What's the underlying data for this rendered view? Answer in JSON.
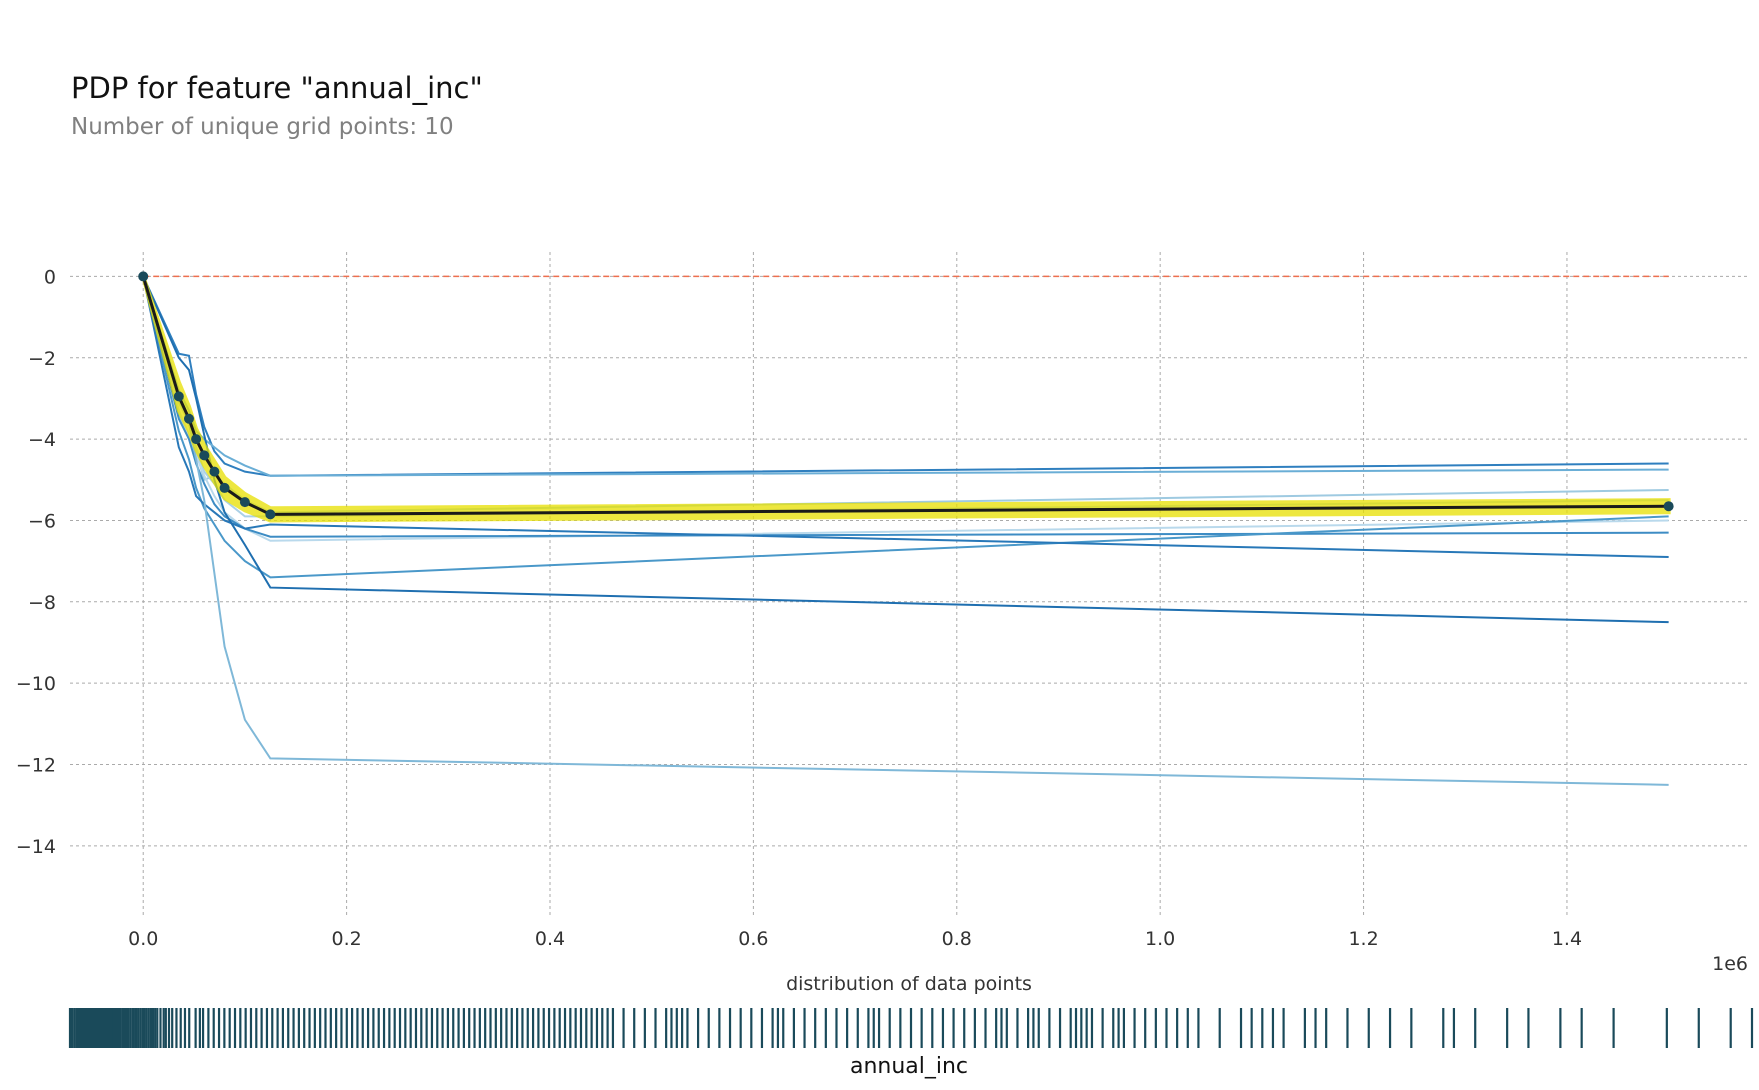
{
  "chart_data": {
    "type": "line",
    "title": "PDP for feature \"annual_inc\"",
    "subtitle": "Number of unique grid points: 10",
    "xlabel": "annual_inc",
    "dist_label": "distribution of data points",
    "x_offset_label": "1e6",
    "xlim": [
      -0.072,
      1.58
    ],
    "ylim": [
      -15.7,
      0.6
    ],
    "grid": true,
    "x_ticks": [
      0.0,
      0.2,
      0.4,
      0.6,
      0.8,
      1.0,
      1.2,
      1.4
    ],
    "x_tick_labels": [
      "0.0",
      "0.2",
      "0.4",
      "0.6",
      "0.8",
      "1.0",
      "1.2",
      "1.4"
    ],
    "y_ticks": [
      0,
      -2,
      -4,
      -6,
      -8,
      -10,
      -12,
      -14
    ],
    "y_tick_labels": [
      "0",
      "−2",
      "−4",
      "−6",
      "−8",
      "−10",
      "−12",
      "−14"
    ],
    "x": [
      0.0,
      0.035,
      0.045,
      0.052,
      0.06,
      0.07,
      0.08,
      0.1,
      0.125,
      1.5
    ],
    "pdp": {
      "values": [
        0,
        -2.95,
        -3.5,
        -4.0,
        -4.4,
        -4.8,
        -5.2,
        -5.55,
        -5.85,
        -5.65
      ],
      "band_upper": [
        0,
        -2.6,
        -3.2,
        -3.75,
        -4.15,
        -4.55,
        -4.95,
        -5.35,
        -5.7,
        -5.5
      ],
      "band_lower": [
        0,
        -3.3,
        -3.8,
        -4.25,
        -4.65,
        -5.05,
        -5.45,
        -5.75,
        -6.0,
        -5.8
      ],
      "line_color": "#1a1a1a",
      "marker_color": "#1a4a5a",
      "band_color": "#e8e000"
    },
    "zero_line_color": "#ee6f4e",
    "ice_lines": [
      {
        "color": "#2f7fbf",
        "values": [
          0,
          -1.9,
          -1.95,
          -2.9,
          -3.7,
          -4.3,
          -4.6,
          -4.8,
          -4.9,
          -4.6
        ]
      },
      {
        "color": "#6aaed6",
        "values": [
          0,
          -2.8,
          -3.3,
          -3.8,
          -4.0,
          -4.2,
          -4.4,
          -4.65,
          -4.9,
          -4.75
        ]
      },
      {
        "color": "#9ecae1",
        "values": [
          0,
          -3.4,
          -4.0,
          -4.3,
          -5.0,
          -4.9,
          -5.1,
          -5.5,
          -5.8,
          -5.25
        ]
      },
      {
        "color": "#abd0e6",
        "values": [
          0,
          -3.1,
          -3.6,
          -4.2,
          -4.8,
          -5.1,
          -5.5,
          -5.9,
          -5.9,
          -5.5
        ]
      },
      {
        "color": "#b9d9ec",
        "values": [
          0,
          -3.3,
          -3.9,
          -4.4,
          -4.9,
          -5.4,
          -5.8,
          -6.2,
          -6.5,
          -6.0
        ]
      },
      {
        "color": "#3d8cc4",
        "values": [
          0,
          -3.5,
          -4.0,
          -4.6,
          -5.1,
          -5.6,
          -5.9,
          -6.2,
          -6.4,
          -6.3
        ]
      },
      {
        "color": "#4a98c9",
        "values": [
          0,
          -3.8,
          -4.5,
          -5.2,
          -5.7,
          -6.1,
          -6.5,
          -7.0,
          -7.4,
          -5.9
        ]
      },
      {
        "color": "#2878b8",
        "values": [
          0,
          -4.2,
          -4.8,
          -5.4,
          -5.6,
          -5.8,
          -6.0,
          -6.2,
          -6.1,
          -6.9
        ]
      },
      {
        "color": "#1f6fb0",
        "values": [
          0,
          -2.0,
          -2.3,
          -3.0,
          -3.9,
          -5.0,
          -5.8,
          -6.6,
          -7.65,
          -8.5
        ]
      },
      {
        "color": "#7fb8d8",
        "values": [
          0,
          -3.0,
          -3.6,
          -4.5,
          -5.5,
          -7.3,
          -9.1,
          -10.9,
          -11.85,
          -12.5
        ]
      }
    ],
    "distribution": {
      "color": "#1a4a5a",
      "points": [
        0.0,
        0.001,
        0.002,
        0.004,
        0.006,
        0.008,
        0.01,
        0.011,
        0.012,
        0.013,
        0.014,
        0.015,
        0.016,
        0.017,
        0.018,
        0.019,
        0.02,
        0.021,
        0.022,
        0.023,
        0.024,
        0.025,
        0.026,
        0.027,
        0.028,
        0.029,
        0.03,
        0.032,
        0.034,
        0.036,
        0.038,
        0.04,
        0.041,
        0.042,
        0.043,
        0.044,
        0.045,
        0.047,
        0.049,
        0.05,
        0.051,
        0.052,
        0.053,
        0.054,
        0.055,
        0.057,
        0.059,
        0.06,
        0.062,
        0.064,
        0.066,
        0.068,
        0.07,
        0.072,
        0.074,
        0.076,
        0.078,
        0.08,
        0.082,
        0.085,
        0.088,
        0.09,
        0.093,
        0.096,
        0.1,
        0.104,
        0.108,
        0.112,
        0.118,
        0.122,
        0.125,
        0.13,
        0.135,
        0.14,
        0.145,
        0.15,
        0.155,
        0.16,
        0.165,
        0.17,
        0.175,
        0.18,
        0.185,
        0.19,
        0.195,
        0.2,
        0.205,
        0.21,
        0.215,
        0.22,
        0.225,
        0.23,
        0.235,
        0.24,
        0.245,
        0.25,
        0.255,
        0.26,
        0.265,
        0.27,
        0.275,
        0.28,
        0.285,
        0.29,
        0.295,
        0.3,
        0.305,
        0.31,
        0.315,
        0.32,
        0.325,
        0.33,
        0.335,
        0.34,
        0.345,
        0.35,
        0.355,
        0.36,
        0.365,
        0.37,
        0.375,
        0.38,
        0.385,
        0.39,
        0.395,
        0.4,
        0.405,
        0.41,
        0.415,
        0.42,
        0.425,
        0.43,
        0.435,
        0.44,
        0.445,
        0.45,
        0.455,
        0.46,
        0.465,
        0.47,
        0.475,
        0.48,
        0.485,
        0.49,
        0.495,
        0.5,
        0.505,
        0.51,
        0.52,
        0.53,
        0.54,
        0.55,
        0.56,
        0.565,
        0.57,
        0.575,
        0.58,
        0.59,
        0.6,
        0.61,
        0.62,
        0.63,
        0.64,
        0.65,
        0.66,
        0.665,
        0.67,
        0.68,
        0.69,
        0.7,
        0.71,
        0.72,
        0.73,
        0.74,
        0.75,
        0.755,
        0.76,
        0.77,
        0.78,
        0.79,
        0.8,
        0.81,
        0.82,
        0.83,
        0.84,
        0.85,
        0.86,
        0.87,
        0.875,
        0.88,
        0.89,
        0.9,
        0.905,
        0.91,
        0.92,
        0.93,
        0.94,
        0.945,
        0.95,
        0.955,
        0.96,
        0.97,
        0.98,
        0.985,
        0.99,
        1.0,
        1.01,
        1.02,
        1.03,
        1.04,
        1.05,
        1.06,
        1.08,
        1.1,
        1.11,
        1.12,
        1.13,
        1.14,
        1.16,
        1.17,
        1.18,
        1.2,
        1.22,
        1.24,
        1.26,
        1.29,
        1.3,
        1.32,
        1.35,
        1.37,
        1.4,
        1.42,
        1.45,
        1.5,
        1.53,
        1.56,
        1.58
      ]
    }
  }
}
